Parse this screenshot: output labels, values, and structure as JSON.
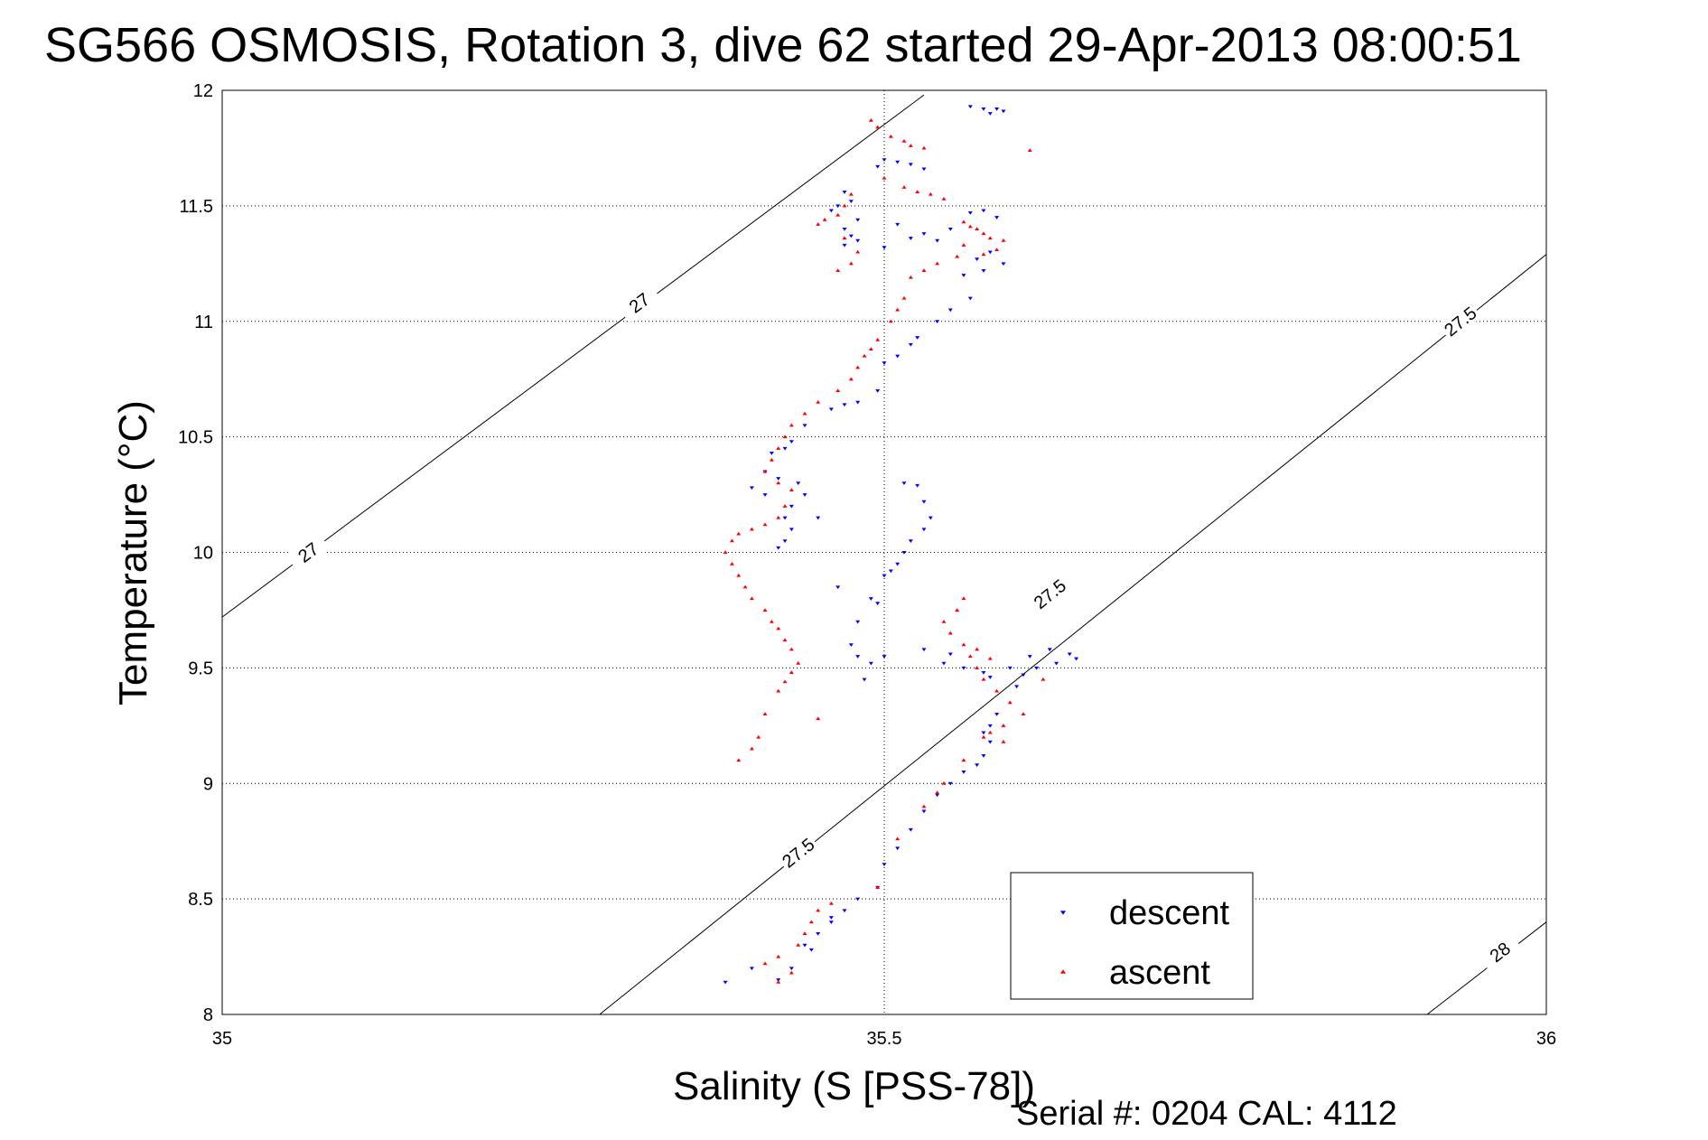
{
  "chart_data": {
    "type": "scatter",
    "title": "SG566 OSMOSIS, Rotation 3, dive 62 started 29-Apr-2013 08:00:51",
    "xlabel": "Salinity (S [PSS-78])",
    "ylabel": "Temperature (°C)",
    "xlim": [
      35,
      36
    ],
    "ylim": [
      8,
      12
    ],
    "xticks": [
      "35",
      "35.5",
      "36"
    ],
    "yticks": [
      "8",
      "8.5",
      "9",
      "9.5",
      "10",
      "10.5",
      "11",
      "11.5",
      "12"
    ],
    "grid": true,
    "legend_position": "bottom-right",
    "footer": "Serial #: 0204  CAL: 4112",
    "contours": [
      {
        "label": "27",
        "points": [
          [
            35.0,
            9.72
          ],
          [
            35.53,
            11.98
          ]
        ],
        "label_at": [
          [
            35.065,
            10.0
          ],
          [
            35.315,
            11.08
          ]
        ]
      },
      {
        "label": "27.5",
        "points": [
          [
            35.285,
            8.0
          ],
          [
            36.0,
            11.29
          ]
        ],
        "label_at": [
          [
            35.435,
            8.7
          ],
          [
            35.625,
            9.82
          ],
          [
            35.935,
            11.0
          ]
        ]
      },
      {
        "label": "28",
        "points": [
          [
            35.91,
            8.0
          ],
          [
            36.0,
            8.4
          ]
        ],
        "label_at": [
          [
            35.965,
            8.27
          ]
        ]
      }
    ],
    "series": [
      {
        "name": "descent",
        "color": "#0000ff",
        "marker": "triangle-down",
        "points": [
          [
            35.565,
            11.93
          ],
          [
            35.575,
            11.92
          ],
          [
            35.585,
            11.92
          ],
          [
            35.59,
            11.91
          ],
          [
            35.58,
            11.9
          ],
          [
            35.5,
            11.7
          ],
          [
            35.51,
            11.69
          ],
          [
            35.52,
            11.68
          ],
          [
            35.495,
            11.67
          ],
          [
            35.53,
            11.66
          ],
          [
            35.47,
            11.56
          ],
          [
            35.475,
            11.52
          ],
          [
            35.465,
            11.5
          ],
          [
            35.46,
            11.48
          ],
          [
            35.48,
            11.44
          ],
          [
            35.47,
            11.4
          ],
          [
            35.475,
            11.37
          ],
          [
            35.48,
            11.35
          ],
          [
            35.47,
            11.33
          ],
          [
            35.5,
            11.32
          ],
          [
            35.52,
            11.36
          ],
          [
            35.53,
            11.38
          ],
          [
            35.54,
            11.35
          ],
          [
            35.51,
            11.42
          ],
          [
            35.55,
            11.4
          ],
          [
            35.565,
            11.47
          ],
          [
            35.575,
            11.48
          ],
          [
            35.585,
            11.45
          ],
          [
            35.58,
            11.3
          ],
          [
            35.57,
            11.27
          ],
          [
            35.59,
            11.25
          ],
          [
            35.575,
            11.22
          ],
          [
            35.56,
            11.2
          ],
          [
            35.565,
            11.1
          ],
          [
            35.55,
            11.05
          ],
          [
            35.54,
            11.0
          ],
          [
            35.525,
            10.93
          ],
          [
            35.52,
            10.9
          ],
          [
            35.51,
            10.85
          ],
          [
            35.5,
            10.82
          ],
          [
            35.495,
            10.7
          ],
          [
            35.48,
            10.65
          ],
          [
            35.47,
            10.64
          ],
          [
            35.46,
            10.62
          ],
          [
            35.44,
            10.55
          ],
          [
            35.43,
            10.48
          ],
          [
            35.425,
            10.45
          ],
          [
            35.415,
            10.43
          ],
          [
            35.41,
            10.35
          ],
          [
            35.42,
            10.32
          ],
          [
            35.435,
            10.3
          ],
          [
            35.44,
            10.25
          ],
          [
            35.43,
            10.2
          ],
          [
            35.425,
            10.15
          ],
          [
            35.43,
            10.1
          ],
          [
            35.425,
            10.05
          ],
          [
            35.42,
            10.02
          ],
          [
            35.41,
            10.25
          ],
          [
            35.4,
            10.28
          ],
          [
            35.515,
            10.3
          ],
          [
            35.525,
            10.29
          ],
          [
            35.53,
            10.22
          ],
          [
            35.535,
            10.15
          ],
          [
            35.53,
            10.1
          ],
          [
            35.52,
            10.05
          ],
          [
            35.515,
            10.0
          ],
          [
            35.51,
            9.95
          ],
          [
            35.505,
            9.92
          ],
          [
            35.5,
            9.9
          ],
          [
            35.49,
            9.8
          ],
          [
            35.495,
            9.78
          ],
          [
            35.48,
            9.7
          ],
          [
            35.475,
            9.6
          ],
          [
            35.48,
            9.55
          ],
          [
            35.49,
            9.52
          ],
          [
            35.5,
            9.55
          ],
          [
            35.485,
            9.45
          ],
          [
            35.465,
            9.85
          ],
          [
            35.45,
            10.15
          ],
          [
            35.53,
            9.58
          ],
          [
            35.55,
            9.56
          ],
          [
            35.545,
            9.52
          ],
          [
            35.56,
            9.5
          ],
          [
            35.575,
            9.48
          ],
          [
            35.58,
            9.46
          ],
          [
            35.595,
            9.5
          ],
          [
            35.61,
            9.55
          ],
          [
            35.625,
            9.58
          ],
          [
            35.64,
            9.56
          ],
          [
            35.645,
            9.54
          ],
          [
            35.63,
            9.52
          ],
          [
            35.615,
            9.5
          ],
          [
            35.605,
            9.47
          ],
          [
            35.6,
            9.42
          ],
          [
            35.585,
            9.3
          ],
          [
            35.58,
            9.25
          ],
          [
            35.575,
            9.22
          ],
          [
            35.58,
            9.18
          ],
          [
            35.575,
            9.12
          ],
          [
            35.57,
            9.08
          ],
          [
            35.56,
            9.05
          ],
          [
            35.55,
            9.0
          ],
          [
            35.54,
            8.95
          ],
          [
            35.53,
            8.88
          ],
          [
            35.52,
            8.8
          ],
          [
            35.51,
            8.72
          ],
          [
            35.5,
            8.65
          ],
          [
            35.495,
            8.55
          ],
          [
            35.48,
            8.5
          ],
          [
            35.47,
            8.45
          ],
          [
            35.46,
            8.4
          ],
          [
            35.45,
            8.35
          ],
          [
            35.44,
            8.3
          ],
          [
            35.43,
            8.2
          ],
          [
            35.42,
            8.15
          ],
          [
            35.4,
            8.2
          ],
          [
            35.38,
            8.14
          ],
          [
            35.46,
            8.42
          ],
          [
            35.445,
            8.28
          ]
        ]
      },
      {
        "name": "ascent",
        "color": "#ff0000",
        "marker": "triangle-up",
        "points": [
          [
            35.49,
            11.87
          ],
          [
            35.495,
            11.84
          ],
          [
            35.505,
            11.8
          ],
          [
            35.515,
            11.78
          ],
          [
            35.52,
            11.76
          ],
          [
            35.53,
            11.75
          ],
          [
            35.61,
            11.74
          ],
          [
            35.5,
            11.62
          ],
          [
            35.515,
            11.58
          ],
          [
            35.525,
            11.56
          ],
          [
            35.535,
            11.55
          ],
          [
            35.545,
            11.53
          ],
          [
            35.475,
            11.55
          ],
          [
            35.47,
            11.5
          ],
          [
            35.465,
            11.46
          ],
          [
            35.455,
            11.44
          ],
          [
            35.45,
            11.42
          ],
          [
            35.47,
            11.36
          ],
          [
            35.48,
            11.3
          ],
          [
            35.475,
            11.25
          ],
          [
            35.465,
            11.22
          ],
          [
            35.56,
            11.43
          ],
          [
            35.565,
            11.41
          ],
          [
            35.57,
            11.4
          ],
          [
            35.575,
            11.38
          ],
          [
            35.58,
            11.36
          ],
          [
            35.59,
            11.35
          ],
          [
            35.585,
            11.31
          ],
          [
            35.575,
            11.29
          ],
          [
            35.56,
            11.33
          ],
          [
            35.555,
            11.28
          ],
          [
            35.54,
            11.25
          ],
          [
            35.53,
            11.22
          ],
          [
            35.52,
            11.19
          ],
          [
            35.515,
            11.1
          ],
          [
            35.51,
            11.05
          ],
          [
            35.505,
            11.0
          ],
          [
            35.495,
            10.92
          ],
          [
            35.49,
            10.88
          ],
          [
            35.485,
            10.85
          ],
          [
            35.48,
            10.8
          ],
          [
            35.475,
            10.75
          ],
          [
            35.465,
            10.7
          ],
          [
            35.45,
            10.65
          ],
          [
            35.44,
            10.6
          ],
          [
            35.43,
            10.55
          ],
          [
            35.425,
            10.5
          ],
          [
            35.42,
            10.45
          ],
          [
            35.415,
            10.4
          ],
          [
            35.41,
            10.35
          ],
          [
            35.42,
            10.3
          ],
          [
            35.43,
            10.27
          ],
          [
            35.425,
            10.2
          ],
          [
            35.42,
            10.15
          ],
          [
            35.41,
            10.12
          ],
          [
            35.4,
            10.1
          ],
          [
            35.39,
            10.08
          ],
          [
            35.385,
            10.05
          ],
          [
            35.38,
            10.0
          ],
          [
            35.385,
            9.95
          ],
          [
            35.39,
            9.9
          ],
          [
            35.395,
            9.85
          ],
          [
            35.4,
            9.8
          ],
          [
            35.41,
            9.75
          ],
          [
            35.415,
            9.7
          ],
          [
            35.42,
            9.67
          ],
          [
            35.425,
            9.62
          ],
          [
            35.43,
            9.58
          ],
          [
            35.435,
            9.52
          ],
          [
            35.43,
            9.48
          ],
          [
            35.425,
            9.44
          ],
          [
            35.42,
            9.4
          ],
          [
            35.41,
            9.3
          ],
          [
            35.405,
            9.2
          ],
          [
            35.4,
            9.15
          ],
          [
            35.39,
            9.1
          ],
          [
            35.45,
            9.28
          ],
          [
            35.56,
            9.8
          ],
          [
            35.555,
            9.75
          ],
          [
            35.545,
            9.7
          ],
          [
            35.55,
            9.65
          ],
          [
            35.56,
            9.6
          ],
          [
            35.565,
            9.55
          ],
          [
            35.57,
            9.5
          ],
          [
            35.575,
            9.45
          ],
          [
            35.585,
            9.4
          ],
          [
            35.595,
            9.35
          ],
          [
            35.605,
            9.3
          ],
          [
            35.59,
            9.25
          ],
          [
            35.58,
            9.22
          ],
          [
            35.575,
            9.2
          ],
          [
            35.59,
            9.18
          ],
          [
            35.56,
            9.1
          ],
          [
            35.545,
            9.0
          ],
          [
            35.54,
            8.96
          ],
          [
            35.53,
            8.9
          ],
          [
            35.51,
            8.76
          ],
          [
            35.495,
            8.55
          ],
          [
            35.46,
            8.48
          ],
          [
            35.45,
            8.45
          ],
          [
            35.445,
            8.4
          ],
          [
            35.44,
            8.35
          ],
          [
            35.435,
            8.3
          ],
          [
            35.42,
            8.25
          ],
          [
            35.41,
            8.22
          ],
          [
            35.43,
            8.18
          ],
          [
            35.42,
            8.14
          ],
          [
            35.57,
            9.58
          ],
          [
            35.58,
            9.54
          ],
          [
            35.62,
            9.45
          ]
        ]
      }
    ]
  }
}
